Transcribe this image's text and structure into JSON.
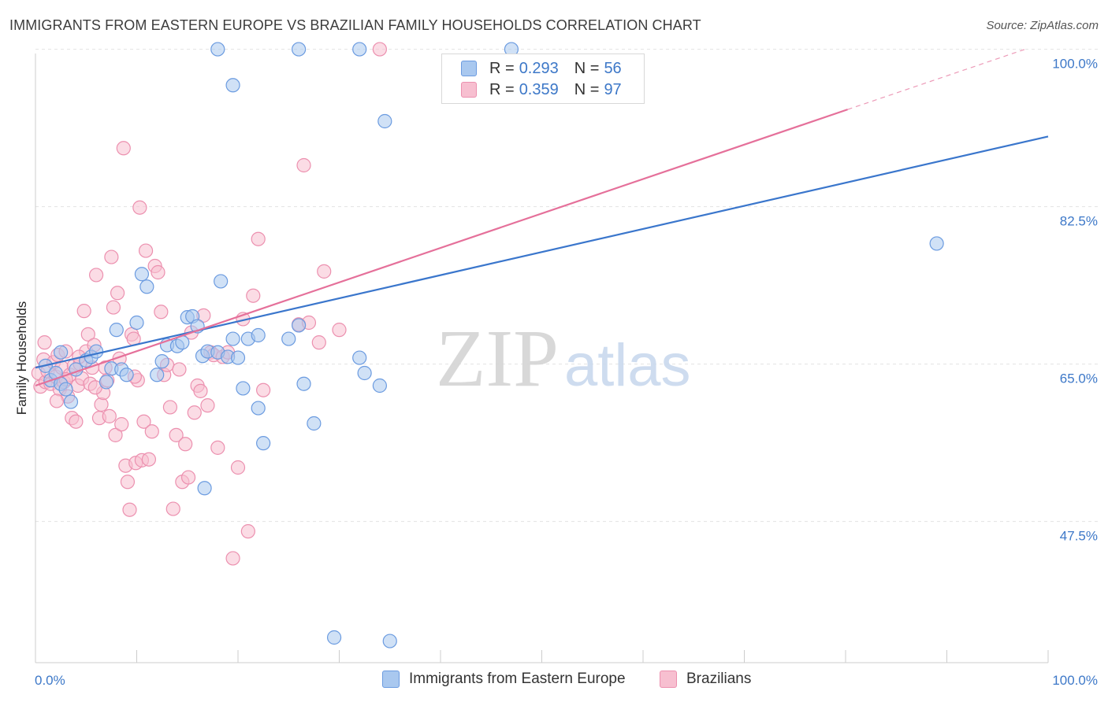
{
  "title": "IMMIGRANTS FROM EASTERN EUROPE VS BRAZILIAN FAMILY HOUSEHOLDS CORRELATION CHART",
  "source": "Source: ZipAtlas.com",
  "watermark": {
    "zip": "ZIP",
    "atlas": "atlas"
  },
  "legend": {
    "r_label": "R =",
    "n_label": "N =",
    "blue": {
      "r": "0.293",
      "n": "56"
    },
    "pink": {
      "r": "0.359",
      "n": "97"
    }
  },
  "colors": {
    "blue_fill": "#a9c8ef",
    "blue_stroke": "#6b9be0",
    "blue_line": "#3a76cc",
    "pink_fill": "#f7bfd0",
    "pink_stroke": "#ec90af",
    "pink_line": "#e5709a",
    "axis_text": "#3d78c8",
    "grid": "#e2e2e2"
  },
  "chart_data": {
    "type": "scatter",
    "title": "IMMIGRANTS FROM EASTERN EUROPE VS BRAZILIAN FAMILY HOUSEHOLDS CORRELATION CHART",
    "xlabel": "",
    "ylabel": "Family Households",
    "xlim": [
      0,
      100
    ],
    "ylim": [
      31.8,
      101.8
    ],
    "x_tick_labels": [
      "0.0%",
      "100.0%"
    ],
    "y_ticks": [
      47.5,
      65.0,
      82.5,
      100.0
    ],
    "y_tick_labels": [
      "47.5%",
      "65.0%",
      "82.5%",
      "100.0%"
    ],
    "legend_position": "top-center",
    "series": [
      {
        "name": "Immigrants from Eastern Europe",
        "color": "blue",
        "R": 0.293,
        "N": 56,
        "trend": {
          "x": [
            0,
            100
          ],
          "y": [
            64.6,
            90.3
          ]
        },
        "points": [
          [
            1,
            64.8
          ],
          [
            1.5,
            63.2
          ],
          [
            2,
            64
          ],
          [
            2.5,
            62.8
          ],
          [
            3,
            62.2
          ],
          [
            3.5,
            60.8
          ],
          [
            4,
            64.4
          ],
          [
            5,
            65.4
          ],
          [
            5.5,
            65.8
          ],
          [
            6,
            66.4
          ],
          [
            7,
            63
          ],
          [
            7.5,
            64.5
          ],
          [
            8,
            68.8
          ],
          [
            8.5,
            64.4
          ],
          [
            9,
            63.8
          ],
          [
            10,
            69.6
          ],
          [
            10.5,
            75
          ],
          [
            11,
            73.6
          ],
          [
            12,
            63.8
          ],
          [
            13,
            67.1
          ],
          [
            14,
            67
          ],
          [
            14.5,
            67.4
          ],
          [
            15,
            70.2
          ],
          [
            15.5,
            70.3
          ],
          [
            16,
            69.2
          ],
          [
            16.5,
            65.9
          ],
          [
            17,
            66.4
          ],
          [
            18,
            66.3
          ],
          [
            19,
            65.8
          ],
          [
            19.5,
            67.8
          ],
          [
            20,
            65.7
          ],
          [
            16.7,
            51.2
          ],
          [
            18.3,
            74.2
          ],
          [
            18,
            100
          ],
          [
            19.5,
            96
          ],
          [
            20.5,
            62.3
          ],
          [
            22,
            60.1
          ],
          [
            21,
            67.8
          ],
          [
            22.5,
            56.2
          ],
          [
            22,
            68.2
          ],
          [
            26,
            69.3
          ],
          [
            25,
            67.8
          ],
          [
            26.5,
            62.8
          ],
          [
            27.5,
            58.4
          ],
          [
            29.5,
            34.6
          ],
          [
            32,
            65.7
          ],
          [
            32.5,
            64
          ],
          [
            34,
            62.6
          ],
          [
            34.5,
            92
          ],
          [
            35,
            34.2
          ],
          [
            26,
            100
          ],
          [
            32,
            100
          ],
          [
            47,
            100
          ],
          [
            89,
            78.4
          ],
          [
            12.5,
            65.3
          ],
          [
            2.5,
            66.3
          ]
        ]
      },
      {
        "name": "Brazilians",
        "color": "pink",
        "R": 0.359,
        "N": 97,
        "trend": {
          "x": [
            0,
            80.2
          ],
          "y": [
            62.6,
            93.3
          ],
          "dashed_to": {
            "x": 98,
            "y": 100.1
          }
        },
        "points": [
          [
            0.3,
            64
          ],
          [
            0.5,
            62.5
          ],
          [
            0.8,
            65.5
          ],
          [
            1,
            63
          ],
          [
            1.2,
            64.2
          ],
          [
            1.5,
            62.8
          ],
          [
            1.8,
            65.2
          ],
          [
            2,
            63.6
          ],
          [
            2.2,
            66
          ],
          [
            2.4,
            62.2
          ],
          [
            2.6,
            64.6
          ],
          [
            2.8,
            63
          ],
          [
            3,
            66.4
          ],
          [
            3.2,
            61.4
          ],
          [
            3.4,
            63.8
          ],
          [
            3.6,
            59
          ],
          [
            3.8,
            64.8
          ],
          [
            4,
            58.6
          ],
          [
            4.2,
            62.6
          ],
          [
            4.4,
            65
          ],
          [
            4.6,
            63.4
          ],
          [
            4.8,
            70.9
          ],
          [
            5,
            66.4
          ],
          [
            5.2,
            68.3
          ],
          [
            5.4,
            62.8
          ],
          [
            5.6,
            64.6
          ],
          [
            5.8,
            67.1
          ],
          [
            6,
            74.9
          ],
          [
            6.3,
            59
          ],
          [
            6.5,
            60.5
          ],
          [
            6.7,
            61.8
          ],
          [
            6.9,
            64.6
          ],
          [
            7.1,
            63.2
          ],
          [
            7.3,
            59.2
          ],
          [
            7.5,
            76.9
          ],
          [
            7.7,
            71.3
          ],
          [
            7.9,
            57.1
          ],
          [
            8.1,
            72.9
          ],
          [
            8.3,
            65.6
          ],
          [
            8.5,
            58.3
          ],
          [
            8.7,
            89
          ],
          [
            8.9,
            53.7
          ],
          [
            9.1,
            51.9
          ],
          [
            9.3,
            48.8
          ],
          [
            9.5,
            68.3
          ],
          [
            9.7,
            67.8
          ],
          [
            9.9,
            54
          ],
          [
            10.1,
            63.2
          ],
          [
            10.3,
            82.4
          ],
          [
            10.5,
            54.3
          ],
          [
            10.7,
            58.6
          ],
          [
            10.9,
            77.6
          ],
          [
            11.2,
            54.4
          ],
          [
            11.5,
            57.5
          ],
          [
            11.8,
            75.9
          ],
          [
            12.1,
            75.2
          ],
          [
            12.4,
            70.8
          ],
          [
            12.7,
            63.8
          ],
          [
            13,
            64.9
          ],
          [
            13.3,
            60.2
          ],
          [
            13.6,
            48.9
          ],
          [
            13.9,
            57.1
          ],
          [
            14.2,
            64.4
          ],
          [
            14.5,
            51.9
          ],
          [
            14.8,
            56.1
          ],
          [
            15.1,
            52.4
          ],
          [
            15.4,
            68.5
          ],
          [
            15.7,
            59.6
          ],
          [
            16,
            62.6
          ],
          [
            16.3,
            62
          ],
          [
            16.6,
            70.4
          ],
          [
            17,
            60.4
          ],
          [
            17.3,
            66.3
          ],
          [
            17.6,
            66
          ],
          [
            18,
            55.7
          ],
          [
            18.5,
            65.8
          ],
          [
            19,
            66.3
          ],
          [
            19.5,
            43.4
          ],
          [
            20,
            53.5
          ],
          [
            20.5,
            70
          ],
          [
            21,
            46.4
          ],
          [
            21.5,
            72.6
          ],
          [
            22,
            78.9
          ],
          [
            22.5,
            62.1
          ],
          [
            26,
            69.4
          ],
          [
            26.5,
            87.1
          ],
          [
            27,
            69.6
          ],
          [
            28,
            67.4
          ],
          [
            28.5,
            75.3
          ],
          [
            30,
            68.8
          ],
          [
            34,
            100
          ],
          [
            3,
            63.3
          ],
          [
            4.3,
            65.8
          ],
          [
            2.1,
            60.9
          ],
          [
            5.9,
            62.4
          ],
          [
            9.8,
            63.6
          ],
          [
            0.9,
            67.4
          ]
        ]
      }
    ]
  },
  "bottom_legend": {
    "blue_label": "Immigrants from Eastern Europe",
    "pink_label": "Brazilians"
  }
}
